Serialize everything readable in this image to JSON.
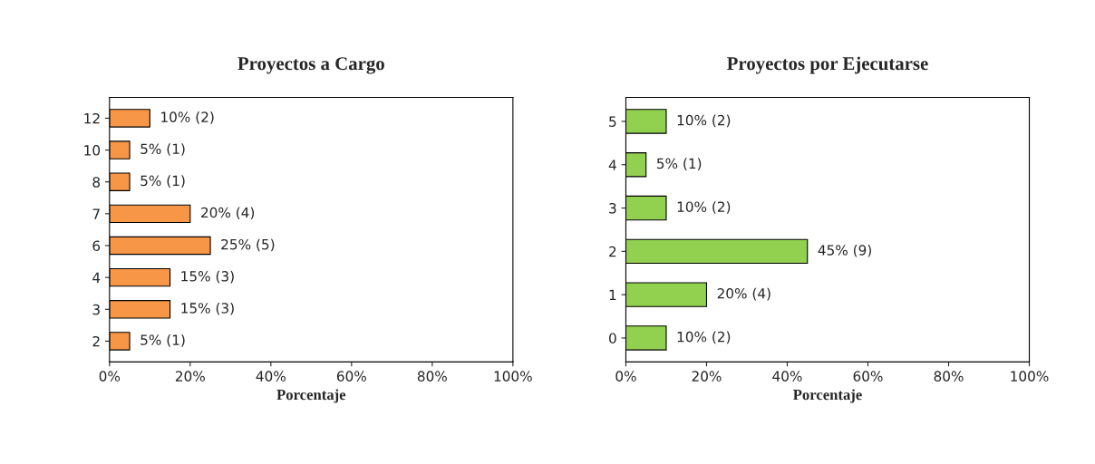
{
  "chart_data": [
    {
      "type": "bar",
      "orientation": "horizontal",
      "title": "Proyectos a Cargo",
      "xlabel": "Porcentaje",
      "categories": [
        "12",
        "10",
        "8",
        "7",
        "6",
        "4",
        "3",
        "2"
      ],
      "values": [
        10,
        5,
        5,
        20,
        25,
        15,
        15,
        5
      ],
      "color": "#f79646",
      "value_labels": [
        "10% (2)",
        "5% (1)",
        "5% (1)",
        "20% (4)",
        "25% (5)",
        "15% (3)",
        "15% (3)",
        "5% (1)"
      ],
      "xlim": [
        0,
        100
      ],
      "xticks": [
        {
          "value": 0,
          "label": "0%"
        },
        {
          "value": 20,
          "label": "20%"
        },
        {
          "value": 40,
          "label": "40%"
        },
        {
          "value": 60,
          "label": "60%"
        },
        {
          "value": 80,
          "label": "80%"
        },
        {
          "value": 100,
          "label": "100%"
        }
      ],
      "grid": false,
      "legend": false
    },
    {
      "type": "bar",
      "orientation": "horizontal",
      "title": "Proyectos por Ejecutarse",
      "xlabel": "Porcentaje",
      "categories": [
        "5",
        "4",
        "3",
        "2",
        "1",
        "0"
      ],
      "values": [
        10,
        5,
        10,
        45,
        20,
        10
      ],
      "color": "#92d050",
      "value_labels": [
        "10% (2)",
        "5% (1)",
        "10% (2)",
        "45% (9)",
        "20% (4)",
        "10% (2)"
      ],
      "xlim": [
        0,
        100
      ],
      "xticks": [
        {
          "value": 0,
          "label": "0%"
        },
        {
          "value": 20,
          "label": "20%"
        },
        {
          "value": 40,
          "label": "40%"
        },
        {
          "value": 60,
          "label": "60%"
        },
        {
          "value": 80,
          "label": "80%"
        },
        {
          "value": 100,
          "label": "100%"
        }
      ],
      "grid": false,
      "legend": false
    }
  ]
}
